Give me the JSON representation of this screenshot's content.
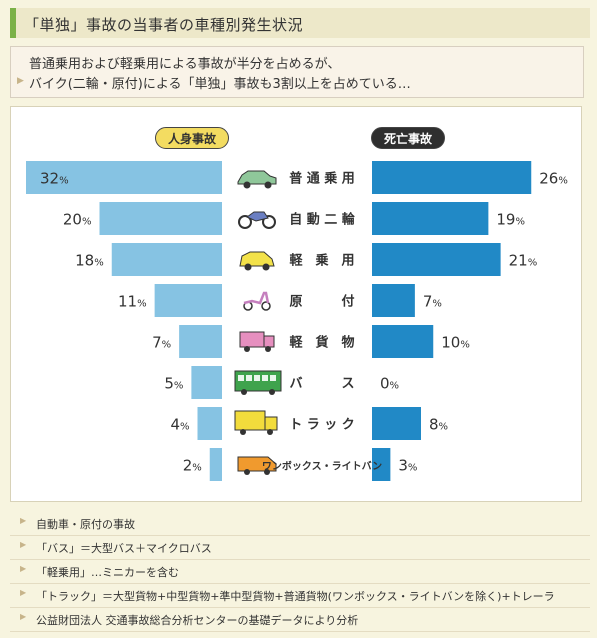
{
  "title": "「単独」事故の当事者の車種別発生状況",
  "summary": {
    "line1": "普通乗用および軽乗用による事故が半分を占めるが、",
    "line2": "バイク(二輪・原付)による「単独」事故も3割以上を占めている…"
  },
  "chart_data": {
    "type": "bar",
    "categories": [
      "普通乗用",
      "自動二輪",
      "軽乗用",
      "原付",
      "軽貨物",
      "バス",
      "トラック",
      "ワンボックス・ライトバン"
    ],
    "category_labels": [
      "普 通 乗 用",
      "自 動 二 輪",
      "軽　乗　用",
      "原　　　付",
      "軽　貨　物",
      "バ　　　ス",
      "ト ラ ッ ク",
      "ワンボックス・ライトバン"
    ],
    "icons": [
      "car-icon",
      "motorcycle-icon",
      "kei-car-icon",
      "scooter-icon",
      "kei-truck-icon",
      "bus-icon",
      "truck-icon",
      "van-icon"
    ],
    "series": [
      {
        "name": "人身事故",
        "values": [
          32,
          20,
          18,
          11,
          7,
          5,
          4,
          2
        ],
        "color": "#86c3e3"
      },
      {
        "name": "死亡事故",
        "values": [
          26,
          19,
          21,
          7,
          10,
          0,
          8,
          3
        ],
        "color": "#2189c6"
      }
    ],
    "unit": "%",
    "xlim": [
      0,
      32
    ]
  },
  "notes": [
    "自動車・原付の事故",
    "「バス」＝大型バス＋マイクロバス",
    "「軽乗用」…ミニカーを含む",
    "「トラック」＝大型貨物+中型貨物+準中型貨物+普通貨物(ワンボックス・ライトバンを除く)+トレーラ",
    "公益財団法人 交通事故総合分析センターの基礎データにより分析"
  ]
}
